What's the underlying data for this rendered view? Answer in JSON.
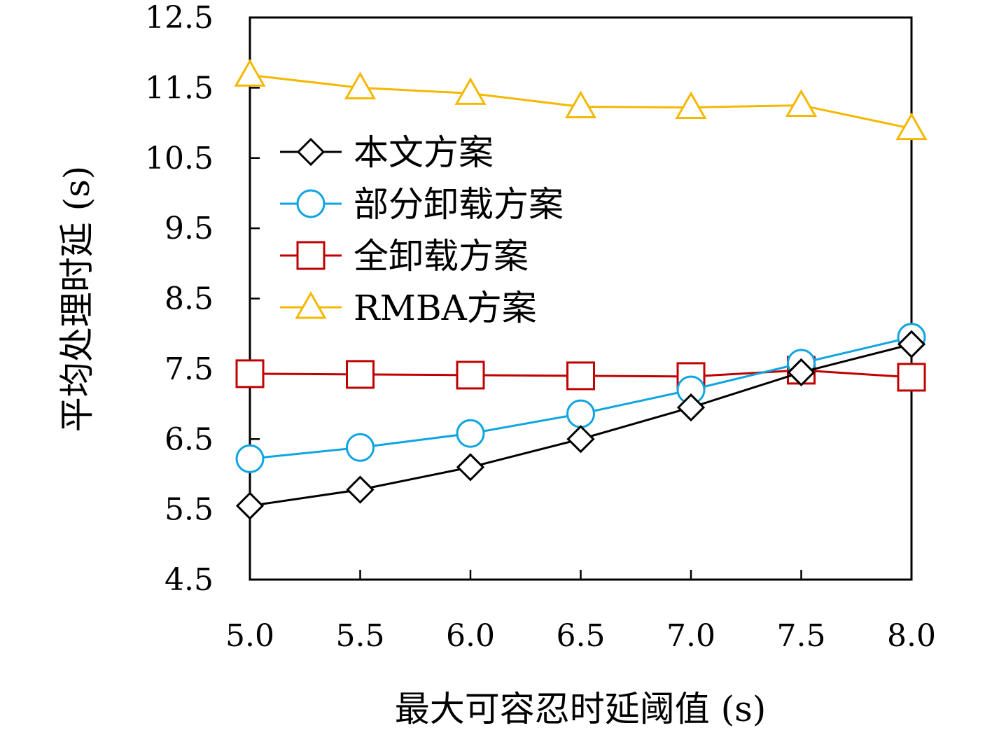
{
  "chart_data": {
    "type": "line",
    "title": "",
    "xlabel": "最大可容忍时延阈值 (s)",
    "ylabel": "平均处理时延 (s)",
    "x": [
      5.0,
      5.5,
      6.0,
      6.5,
      7.0,
      7.5,
      8.0
    ],
    "x_tick_labels": [
      "5.0",
      "5.5",
      "6.0",
      "6.5",
      "7.0",
      "7.5",
      "8.0"
    ],
    "y_tick_labels": [
      "4.5",
      "5.5",
      "6.5",
      "7.5",
      "8.5",
      "9.5",
      "10.5",
      "11.5",
      "12.5"
    ],
    "xlim": [
      5.0,
      8.0
    ],
    "ylim": [
      4.5,
      12.5
    ],
    "grid": false,
    "legend_position": "middle-left",
    "series": [
      {
        "name": "本文方案",
        "color": "#000000",
        "marker": "diamond",
        "values": [
          5.55,
          5.78,
          6.1,
          6.5,
          6.95,
          7.45,
          7.85
        ]
      },
      {
        "name": "部分卸载方案",
        "color": "#0ea5e0",
        "marker": "circle",
        "values": [
          6.22,
          6.38,
          6.58,
          6.86,
          7.2,
          7.58,
          7.95
        ]
      },
      {
        "name": "全卸载方案",
        "color": "#c00000",
        "marker": "square",
        "values": [
          7.43,
          7.42,
          7.41,
          7.4,
          7.39,
          7.48,
          7.38
        ]
      },
      {
        "name": "RMBA方案",
        "color": "#f5b800",
        "marker": "triangle",
        "values": [
          11.68,
          11.5,
          11.42,
          11.23,
          11.22,
          11.25,
          10.92
        ]
      }
    ]
  }
}
